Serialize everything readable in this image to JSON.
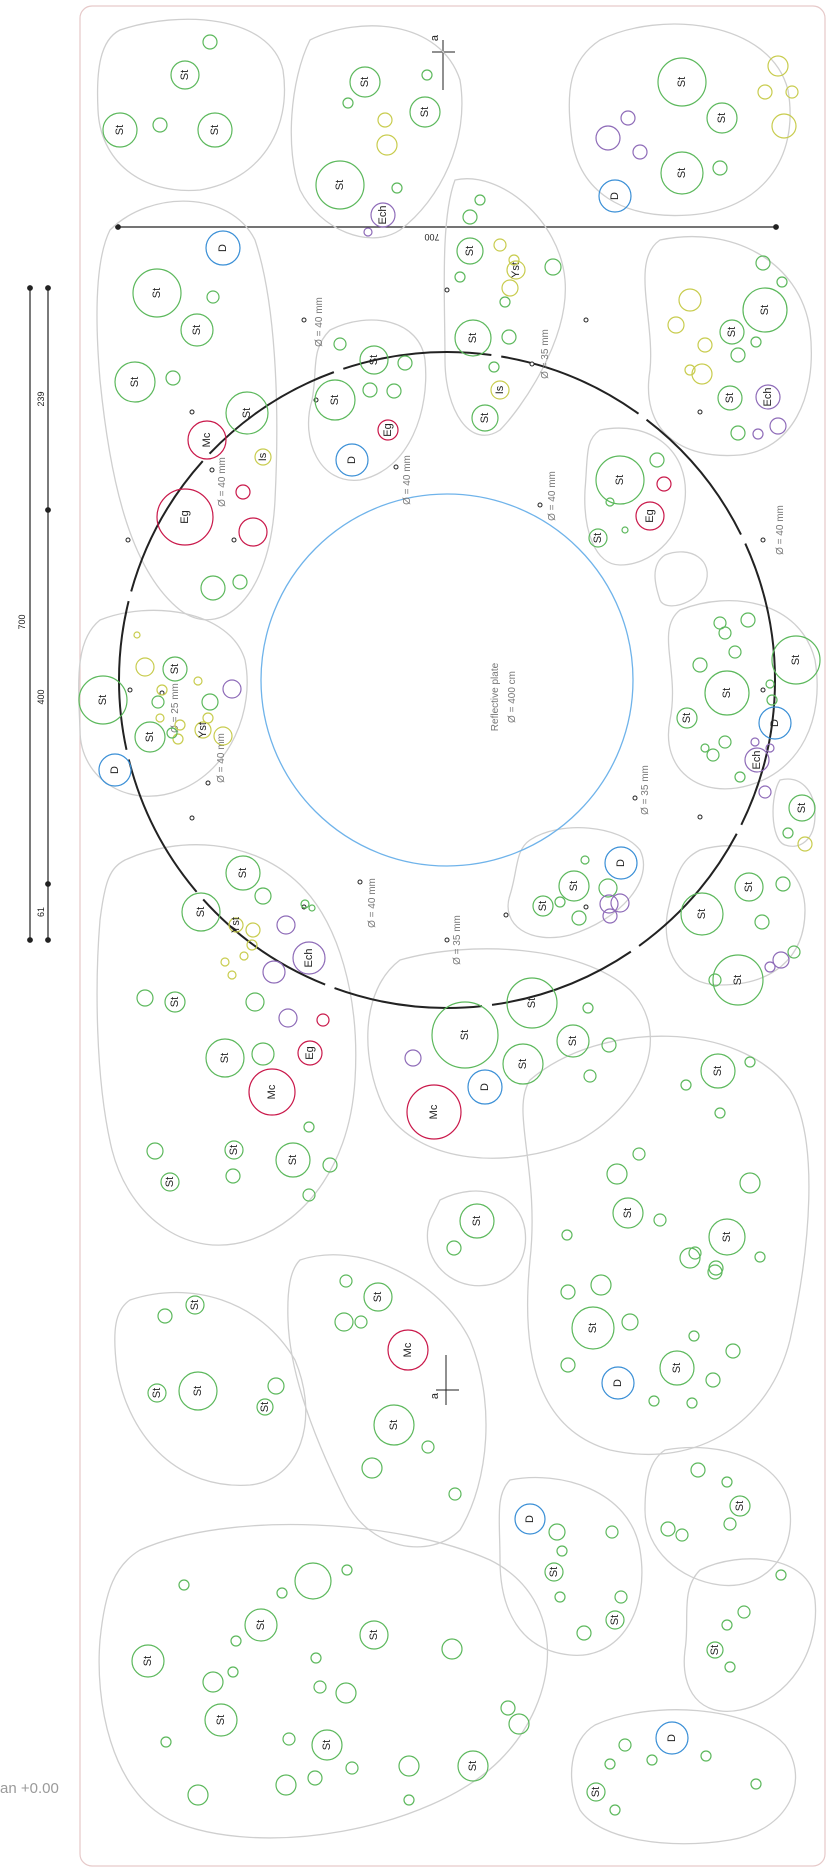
{
  "page": {
    "footer_label": "an +0.00",
    "colors": {
      "green": "#5cb85c",
      "yellow": "#c8cc4e",
      "purple": "#8e6bb8",
      "blue": "#3a8fd6",
      "red": "#c9184a",
      "bed_outline": "#cfcfcf",
      "ring": "#222222",
      "plate": "#6fb3ea"
    }
  },
  "plate": {
    "label": "Reflective plate",
    "diameter": "Ø = 400 cm"
  },
  "dimensions": {
    "overall": "700",
    "top_span": "700",
    "upper": "239",
    "middle": "400",
    "lower": "61"
  },
  "section_marker": "a",
  "hole_labels": [
    "Ø = 40 mm",
    "Ø = 35 mm",
    "Ø = 40 mm",
    "Ø = 40 mm",
    "Ø = 40 mm",
    "Ø = 40 mm",
    "Ø = 25 mm",
    "Ø = 40 mm",
    "Ø = 40 mm",
    "Ø = 35 mm",
    "Ø = 35 mm"
  ],
  "plant_codes": {
    "st": "St",
    "d": "D",
    "mc": "Mc",
    "eg": "Eg",
    "is": "Is",
    "yst": "Yst",
    "ech": "Ech"
  }
}
